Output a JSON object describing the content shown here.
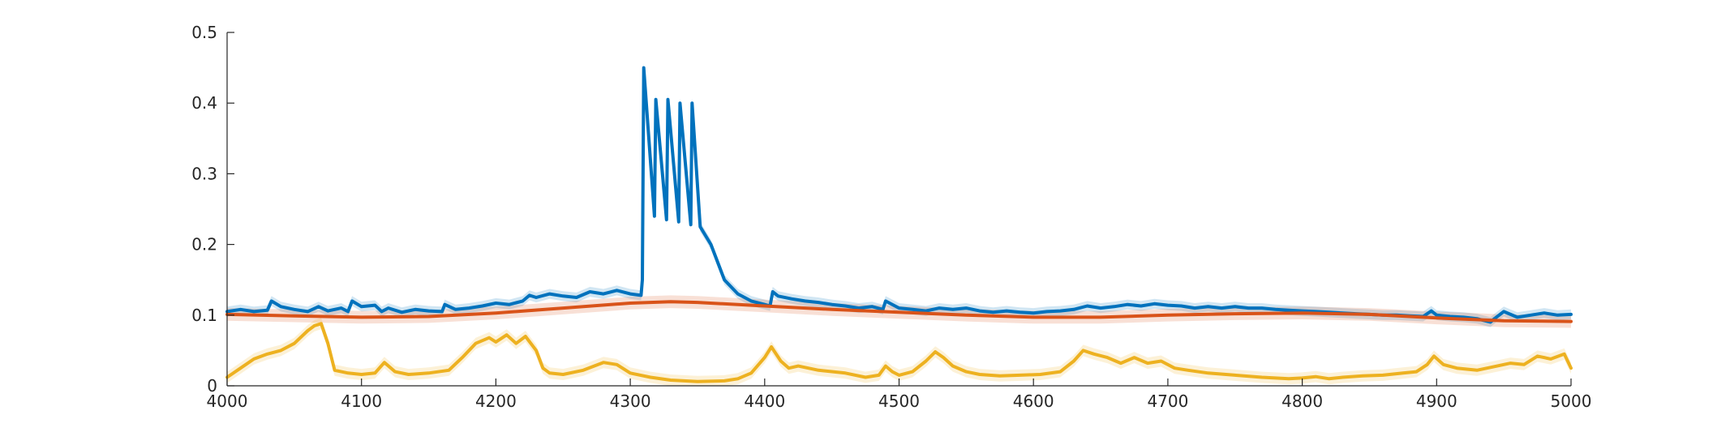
{
  "chart_data": {
    "type": "line",
    "title": "",
    "xlabel": "",
    "ylabel": "",
    "xlim": [
      4000,
      5000
    ],
    "ylim": [
      0,
      0.5
    ],
    "grid": false,
    "xticks": [
      4000,
      4100,
      4200,
      4300,
      4400,
      4500,
      4600,
      4700,
      4800,
      4900,
      5000
    ],
    "yticks": [
      0,
      0.1,
      0.2,
      0.3,
      0.4,
      0.5
    ],
    "xtick_labels": [
      "4000",
      "4100",
      "4200",
      "4300",
      "4400",
      "4500",
      "4600",
      "4700",
      "4800",
      "4900",
      "5000"
    ],
    "ytick_labels": [
      "0",
      "0.1",
      "0.2",
      "0.3",
      "0.4",
      "0.5"
    ],
    "series": [
      {
        "color": "#0072BD",
        "band": 0.007,
        "x": [
          4000,
          4010,
          4020,
          4030,
          4033,
          4040,
          4050,
          4060,
          4068,
          4075,
          4085,
          4090,
          4093,
          4100,
          4110,
          4115,
          4120,
          4130,
          4140,
          4150,
          4160,
          4162,
          4170,
          4180,
          4190,
          4200,
          4210,
          4220,
          4225,
          4230,
          4240,
          4250,
          4260,
          4270,
          4280,
          4290,
          4300,
          4308,
          4309,
          4310,
          4318,
          4319,
          4327,
          4328,
          4336,
          4337,
          4345,
          4346,
          4352,
          4360,
          4370,
          4380,
          4390,
          4400,
          4404,
          4406,
          4410,
          4420,
          4430,
          4440,
          4450,
          4460,
          4470,
          4480,
          4488,
          4490,
          4500,
          4510,
          4520,
          4530,
          4540,
          4550,
          4560,
          4570,
          4580,
          4590,
          4600,
          4610,
          4620,
          4630,
          4640,
          4650,
          4660,
          4670,
          4680,
          4690,
          4700,
          4710,
          4720,
          4730,
          4740,
          4750,
          4760,
          4770,
          4780,
          4790,
          4800,
          4810,
          4820,
          4830,
          4840,
          4850,
          4860,
          4870,
          4880,
          4890,
          4896,
          4900,
          4910,
          4920,
          4930,
          4940,
          4943,
          4950,
          4960,
          4970,
          4980,
          4990,
          5000
        ],
        "y": [
          0.105,
          0.108,
          0.105,
          0.107,
          0.12,
          0.112,
          0.108,
          0.105,
          0.112,
          0.106,
          0.11,
          0.105,
          0.12,
          0.112,
          0.114,
          0.105,
          0.11,
          0.104,
          0.108,
          0.106,
          0.105,
          0.115,
          0.108,
          0.11,
          0.113,
          0.117,
          0.115,
          0.12,
          0.128,
          0.125,
          0.13,
          0.127,
          0.125,
          0.133,
          0.13,
          0.135,
          0.13,
          0.128,
          0.15,
          0.45,
          0.24,
          0.405,
          0.235,
          0.405,
          0.232,
          0.4,
          0.228,
          0.4,
          0.225,
          0.2,
          0.15,
          0.13,
          0.12,
          0.115,
          0.113,
          0.133,
          0.127,
          0.123,
          0.12,
          0.118,
          0.115,
          0.113,
          0.11,
          0.112,
          0.108,
          0.12,
          0.11,
          0.108,
          0.106,
          0.11,
          0.108,
          0.11,
          0.106,
          0.104,
          0.106,
          0.104,
          0.103,
          0.105,
          0.106,
          0.108,
          0.113,
          0.11,
          0.112,
          0.115,
          0.113,
          0.116,
          0.114,
          0.113,
          0.11,
          0.112,
          0.11,
          0.112,
          0.11,
          0.11,
          0.108,
          0.107,
          0.106,
          0.105,
          0.104,
          0.103,
          0.102,
          0.101,
          0.1,
          0.1,
          0.099,
          0.098,
          0.106,
          0.1,
          0.098,
          0.097,
          0.095,
          0.09,
          0.095,
          0.105,
          0.097,
          0.1,
          0.103,
          0.1,
          0.101
        ]
      },
      {
        "color": "#D95319",
        "band": 0.009,
        "x": [
          4000,
          4050,
          4100,
          4150,
          4200,
          4250,
          4300,
          4330,
          4350,
          4400,
          4450,
          4500,
          4550,
          4600,
          4650,
          4700,
          4750,
          4800,
          4850,
          4900,
          4950,
          5000
        ],
        "y": [
          0.101,
          0.099,
          0.097,
          0.098,
          0.103,
          0.11,
          0.117,
          0.119,
          0.118,
          0.113,
          0.108,
          0.104,
          0.1,
          0.097,
          0.097,
          0.1,
          0.102,
          0.103,
          0.101,
          0.096,
          0.092,
          0.091
        ]
      },
      {
        "color": "#EDB120",
        "band": 0.008,
        "x": [
          4000,
          4010,
          4020,
          4030,
          4040,
          4050,
          4060,
          4065,
          4070,
          4075,
          4080,
          4090,
          4100,
          4110,
          4117,
          4125,
          4135,
          4150,
          4165,
          4175,
          4185,
          4195,
          4200,
          4208,
          4215,
          4222,
          4230,
          4235,
          4240,
          4250,
          4265,
          4280,
          4290,
          4300,
          4315,
          4330,
          4350,
          4370,
          4380,
          4390,
          4400,
          4405,
          4412,
          4418,
          4425,
          4440,
          4460,
          4475,
          4485,
          4490,
          4495,
          4500,
          4510,
          4520,
          4527,
          4533,
          4540,
          4550,
          4560,
          4575,
          4590,
          4605,
          4620,
          4630,
          4637,
          4645,
          4655,
          4665,
          4675,
          4685,
          4695,
          4705,
          4715,
          4730,
          4750,
          4770,
          4790,
          4800,
          4810,
          4820,
          4830,
          4845,
          4860,
          4875,
          4885,
          4893,
          4898,
          4905,
          4915,
          4930,
          4945,
          4955,
          4965,
          4975,
          4985,
          4995,
          5000
        ],
        "y": [
          0.012,
          0.025,
          0.038,
          0.045,
          0.05,
          0.06,
          0.078,
          0.085,
          0.088,
          0.06,
          0.022,
          0.018,
          0.016,
          0.018,
          0.033,
          0.02,
          0.016,
          0.018,
          0.022,
          0.04,
          0.06,
          0.068,
          0.062,
          0.072,
          0.06,
          0.07,
          0.05,
          0.025,
          0.018,
          0.016,
          0.022,
          0.033,
          0.03,
          0.018,
          0.012,
          0.008,
          0.006,
          0.007,
          0.01,
          0.018,
          0.04,
          0.055,
          0.035,
          0.025,
          0.028,
          0.022,
          0.018,
          0.012,
          0.015,
          0.028,
          0.02,
          0.015,
          0.02,
          0.035,
          0.048,
          0.04,
          0.028,
          0.02,
          0.016,
          0.014,
          0.015,
          0.016,
          0.02,
          0.035,
          0.05,
          0.045,
          0.04,
          0.032,
          0.04,
          0.032,
          0.035,
          0.025,
          0.022,
          0.018,
          0.015,
          0.012,
          0.01,
          0.011,
          0.013,
          0.01,
          0.012,
          0.014,
          0.015,
          0.018,
          0.02,
          0.03,
          0.042,
          0.03,
          0.025,
          0.022,
          0.028,
          0.032,
          0.03,
          0.042,
          0.038,
          0.045,
          0.025
        ]
      }
    ]
  }
}
